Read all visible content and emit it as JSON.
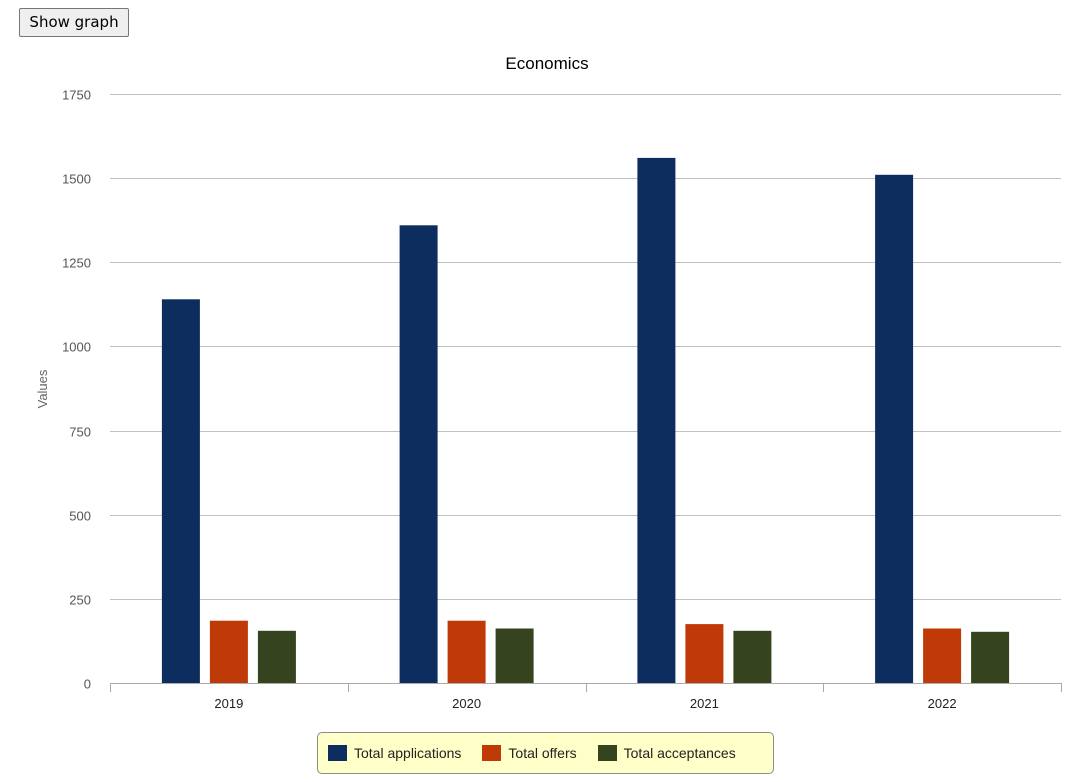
{
  "toolbar": {
    "show_graph_label": "Show graph"
  },
  "chart_data": {
    "type": "bar",
    "title": "Economics",
    "xlabel": "",
    "ylabel": "Values",
    "categories": [
      "2019",
      "2020",
      "2021",
      "2022"
    ],
    "ylim": [
      0,
      1750
    ],
    "yticks": [
      0,
      250,
      500,
      750,
      1000,
      1250,
      1500,
      1750
    ],
    "grid": true,
    "legend_position": "bottom",
    "series": [
      {
        "name": "Total applications",
        "color": "#0c2d5e",
        "values": [
          1140,
          1360,
          1560,
          1510
        ]
      },
      {
        "name": "Total offers",
        "color": "#bf3a06",
        "values": [
          185,
          185,
          175,
          162
        ]
      },
      {
        "name": "Total acceptances",
        "color": "#35431e",
        "values": [
          155,
          162,
          155,
          152
        ]
      }
    ]
  },
  "colors": {
    "legend_background": "#ffffc8",
    "gridline": "#c0c0c0"
  }
}
